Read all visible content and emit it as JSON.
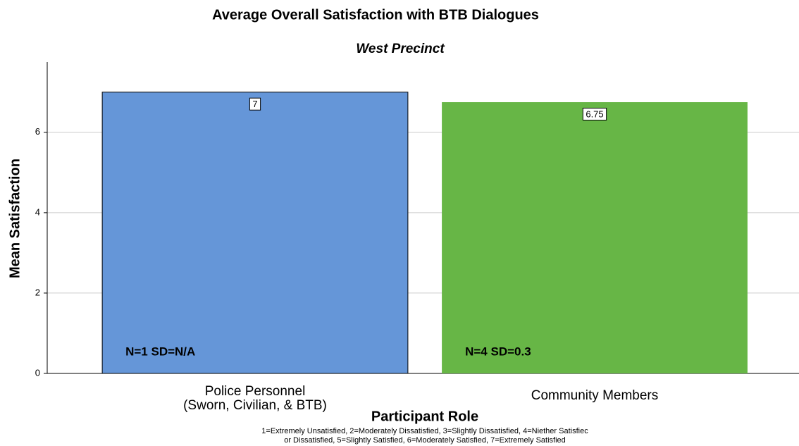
{
  "chart_data": {
    "type": "bar",
    "title": "Average Overall Satisfaction with BTB Dialogues",
    "subtitle": "West Precinct",
    "x_label": "Participant Role",
    "y_label": "Mean Satisfaction",
    "categories": [
      "Police Personnel\n(Sworn, Civilian, & BTB)",
      "Community Members"
    ],
    "series": [
      {
        "name": "Mean Satisfaction",
        "colors": [
          "#6596d8",
          "#67b646"
        ],
        "values": [
          7,
          6.75
        ]
      }
    ],
    "annotations": [
      "N=1 SD=N/A",
      "N=4 SD=0.3"
    ],
    "note": [
      "1=Extremely Unsatisfied, 2=Moderately Dissatisfied, 3=Slightly Dissatisfied, 4=Niether Satisfiec",
      "or Dissatisfied, 5=Slightly Satisfied, 6=Moderately Satisfied, 7=Extremely Satisfied"
    ],
    "ylim": [
      0,
      7.75
    ],
    "yticks": [
      0,
      2,
      4,
      6
    ],
    "grid": true
  }
}
